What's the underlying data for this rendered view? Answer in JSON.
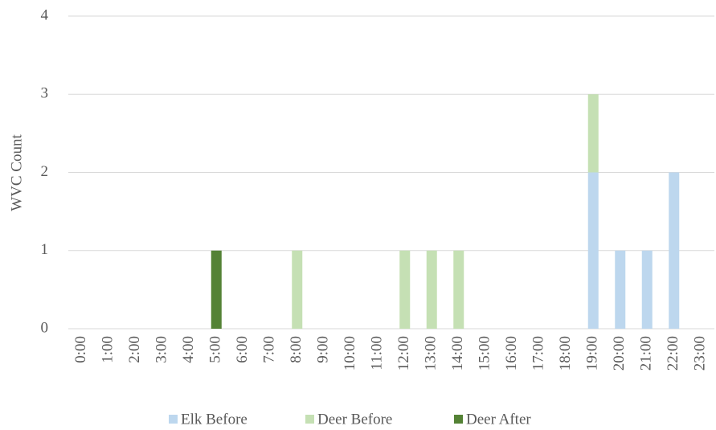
{
  "chart_data": {
    "type": "stacked-bar",
    "y_label": "WVC Count",
    "categories": [
      "0:00",
      "1:00",
      "2:00",
      "3:00",
      "4:00",
      "5:00",
      "6:00",
      "7:00",
      "8:00",
      "9:00",
      "10:00",
      "11:00",
      "12:00",
      "13:00",
      "14:00",
      "15:00",
      "16:00",
      "17:00",
      "18:00",
      "19:00",
      "20:00",
      "21:00",
      "22:00",
      "23:00"
    ],
    "series": [
      {
        "name": "Elk Before",
        "color": "#bdd7ee",
        "values": [
          0,
          0,
          0,
          0,
          0,
          0,
          0,
          0,
          0,
          0,
          0,
          0,
          0,
          0,
          0,
          0,
          0,
          0,
          0,
          2,
          1,
          1,
          2,
          0
        ]
      },
      {
        "name": "Deer Before",
        "color": "#c5e0b4",
        "values": [
          0,
          0,
          0,
          0,
          0,
          0,
          0,
          0,
          1,
          0,
          0,
          0,
          1,
          1,
          1,
          0,
          0,
          0,
          0,
          1,
          0,
          0,
          0,
          0
        ]
      },
      {
        "name": "Deer After",
        "color": "#548235",
        "values": [
          0,
          0,
          0,
          0,
          0,
          1,
          0,
          0,
          0,
          0,
          0,
          0,
          0,
          0,
          0,
          0,
          0,
          0,
          0,
          0,
          0,
          0,
          0,
          0
        ]
      }
    ],
    "ylim": [
      0,
      4
    ],
    "yticks": [
      0,
      1,
      2,
      3,
      4
    ],
    "grid": true,
    "legend": "bottom"
  }
}
